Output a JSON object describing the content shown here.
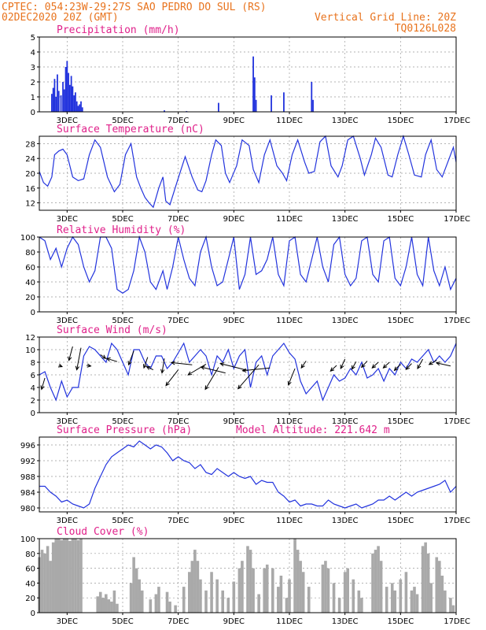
{
  "header": {
    "line1_left": "CPTEC:  054:23W-29:27S  SAO PEDRO DO SUL (RS)",
    "line2_left": "02DEC2020 20Z (GMT)",
    "line2_right": "Vertical Grid Line: 20Z",
    "line3_right": "TQ0126L028"
  },
  "colors": {
    "header": "#e8731d",
    "title": "#e0208a",
    "line": "#2233dd",
    "cloud": "#a9a9a9"
  },
  "x_axis": {
    "ticks": [
      {
        "day": 3,
        "label": "3DEC"
      },
      {
        "day": 5,
        "label": "5DEC"
      },
      {
        "day": 7,
        "label": "7DEC"
      },
      {
        "day": 9,
        "label": "9DEC"
      },
      {
        "day": 11,
        "label": "11DEC"
      },
      {
        "day": 13,
        "label": "13DEC"
      },
      {
        "day": 15,
        "label": "15DEC"
      },
      {
        "day": 17,
        "label": "17DEC"
      }
    ],
    "start_day": 2.0,
    "end_day": 17.0
  },
  "chart_data": [
    {
      "type": "bar",
      "title": "Precipitation (mm/h)",
      "ylim": [
        0,
        5
      ],
      "yticks": [
        0,
        1,
        2,
        3,
        4,
        5
      ],
      "bars": [
        [
          2.45,
          1.2
        ],
        [
          2.5,
          1.6
        ],
        [
          2.55,
          2.2
        ],
        [
          2.6,
          1.0
        ],
        [
          2.65,
          2.5
        ],
        [
          2.7,
          1.4
        ],
        [
          2.78,
          1.1
        ],
        [
          2.85,
          2.0
        ],
        [
          2.9,
          1.5
        ],
        [
          2.95,
          3.0
        ],
        [
          3.0,
          3.4
        ],
        [
          3.05,
          2.6
        ],
        [
          3.1,
          1.8
        ],
        [
          3.15,
          2.4
        ],
        [
          3.2,
          1.7
        ],
        [
          3.25,
          1.1
        ],
        [
          3.3,
          1.3
        ],
        [
          3.35,
          0.7
        ],
        [
          3.4,
          0.4
        ],
        [
          3.45,
          0.5
        ],
        [
          3.5,
          0.7
        ],
        [
          3.55,
          0.3
        ],
        [
          6.5,
          0.1
        ],
        [
          7.3,
          0.05
        ],
        [
          8.45,
          0.6
        ],
        [
          9.7,
          3.7
        ],
        [
          9.75,
          2.3
        ],
        [
          9.8,
          0.8
        ],
        [
          10.35,
          1.1
        ],
        [
          10.8,
          1.3
        ],
        [
          11.8,
          2.0
        ],
        [
          11.85,
          0.8
        ]
      ],
      "grid": true
    },
    {
      "type": "line",
      "title": "Surface Temperature (nC)",
      "ylim": [
        10,
        30
      ],
      "yticks": [
        12,
        16,
        20,
        24,
        28
      ],
      "x": [
        2.0,
        2.15,
        2.3,
        2.45,
        2.55,
        2.7,
        2.85,
        3.0,
        3.2,
        3.4,
        3.6,
        3.8,
        4.0,
        4.2,
        4.45,
        4.7,
        4.9,
        5.1,
        5.3,
        5.5,
        5.65,
        5.8,
        5.95,
        6.1,
        6.3,
        6.45,
        6.55,
        6.7,
        6.95,
        7.1,
        7.25,
        7.5,
        7.7,
        7.85,
        8.0,
        8.2,
        8.35,
        8.55,
        8.7,
        8.85,
        9.1,
        9.3,
        9.55,
        9.7,
        9.9,
        10.1,
        10.3,
        10.55,
        10.75,
        10.9,
        11.1,
        11.3,
        11.55,
        11.7,
        11.9,
        12.1,
        12.3,
        12.5,
        12.75,
        12.9,
        13.1,
        13.3,
        13.55,
        13.7,
        13.95,
        14.1,
        14.3,
        14.55,
        14.7,
        14.9,
        15.1,
        15.3,
        15.5,
        15.75,
        15.9,
        16.1,
        16.3,
        16.5,
        16.75,
        16.9,
        17.0
      ],
      "y": [
        20.5,
        17.5,
        16.5,
        19.0,
        25.0,
        26.0,
        26.5,
        25.0,
        19.0,
        18.0,
        18.5,
        25.0,
        29.0,
        27.0,
        19.0,
        15.0,
        17.0,
        25.0,
        28.0,
        19.0,
        16.0,
        13.5,
        12.0,
        10.8,
        16.0,
        19.0,
        12.5,
        11.5,
        17.5,
        21.0,
        24.5,
        19.0,
        15.5,
        15.0,
        18.0,
        25.0,
        29.0,
        27.5,
        20.0,
        17.5,
        22.0,
        29.0,
        27.5,
        21.0,
        17.5,
        25.0,
        29.0,
        22.0,
        20.0,
        18.0,
        25.0,
        29.0,
        23.0,
        20.0,
        20.5,
        28.5,
        30.0,
        22.0,
        19.0,
        22.0,
        29.0,
        30.0,
        24.0,
        19.5,
        25.0,
        29.5,
        27.0,
        19.5,
        19.0,
        25.0,
        30.0,
        25.0,
        19.5,
        19.0,
        25.0,
        29.0,
        21.0,
        19.0,
        24.0,
        27.0,
        23.0
      ],
      "grid": true
    },
    {
      "type": "line",
      "title": "Relative Humidity (%)",
      "ylim": [
        0,
        100
      ],
      "yticks": [
        0,
        20,
        40,
        60,
        80,
        100
      ],
      "x": [
        2.0,
        2.2,
        2.4,
        2.6,
        2.8,
        3.0,
        3.2,
        3.4,
        3.6,
        3.8,
        4.0,
        4.2,
        4.4,
        4.6,
        4.8,
        5.0,
        5.2,
        5.4,
        5.6,
        5.8,
        6.0,
        6.2,
        6.45,
        6.6,
        6.8,
        7.0,
        7.2,
        7.4,
        7.6,
        7.8,
        8.0,
        8.2,
        8.4,
        8.6,
        8.8,
        9.0,
        9.2,
        9.4,
        9.6,
        9.8,
        10.0,
        10.2,
        10.4,
        10.6,
        10.8,
        11.0,
        11.2,
        11.4,
        11.6,
        11.8,
        12.0,
        12.2,
        12.4,
        12.6,
        12.8,
        13.0,
        13.2,
        13.4,
        13.6,
        13.8,
        14.0,
        14.2,
        14.4,
        14.6,
        14.8,
        15.0,
        15.2,
        15.4,
        15.6,
        15.8,
        16.0,
        16.2,
        16.4,
        16.6,
        16.8,
        17.0
      ],
      "y": [
        100,
        95,
        70,
        85,
        60,
        85,
        100,
        90,
        60,
        40,
        55,
        100,
        100,
        85,
        30,
        25,
        30,
        55,
        100,
        80,
        40,
        30,
        55,
        30,
        60,
        100,
        70,
        45,
        35,
        80,
        100,
        60,
        35,
        40,
        70,
        100,
        30,
        50,
        100,
        50,
        55,
        70,
        100,
        50,
        35,
        95,
        100,
        50,
        40,
        70,
        100,
        60,
        40,
        90,
        100,
        50,
        35,
        45,
        95,
        100,
        50,
        40,
        95,
        100,
        45,
        35,
        60,
        100,
        50,
        35,
        100,
        55,
        35,
        60,
        30,
        45
      ],
      "grid": true
    },
    {
      "type": "line",
      "title": "Surface Wind (m/s)",
      "ylim": [
        0,
        12
      ],
      "yticks": [
        0,
        2,
        4,
        6,
        8,
        10,
        12
      ],
      "x": [
        2.0,
        2.2,
        2.4,
        2.6,
        2.8,
        3.0,
        3.2,
        3.4,
        3.6,
        3.8,
        4.0,
        4.2,
        4.4,
        4.6,
        4.8,
        5.0,
        5.2,
        5.4,
        5.6,
        5.8,
        6.0,
        6.2,
        6.4,
        6.6,
        6.8,
        7.0,
        7.2,
        7.4,
        7.6,
        7.8,
        8.0,
        8.2,
        8.4,
        8.6,
        8.8,
        9.0,
        9.2,
        9.4,
        9.6,
        9.8,
        10.0,
        10.2,
        10.4,
        10.6,
        10.8,
        11.0,
        11.2,
        11.4,
        11.6,
        11.8,
        12.0,
        12.2,
        12.4,
        12.6,
        12.8,
        13.0,
        13.2,
        13.4,
        13.6,
        13.8,
        14.0,
        14.2,
        14.4,
        14.6,
        14.8,
        15.0,
        15.2,
        15.4,
        15.6,
        15.8,
        16.0,
        16.2,
        16.4,
        16.6,
        16.8,
        17.0
      ],
      "y": [
        6,
        6.5,
        4,
        2,
        5,
        2.5,
        4,
        4,
        9,
        10.5,
        10,
        9,
        8,
        11,
        10,
        8,
        6,
        10,
        10,
        8,
        7,
        9,
        9,
        7,
        8,
        9.5,
        11,
        8,
        9,
        10,
        9,
        6,
        9,
        8,
        10,
        7,
        9,
        10,
        4,
        8,
        9,
        6,
        9,
        10,
        11,
        9.5,
        8.5,
        5,
        3,
        4,
        5,
        2,
        4,
        6,
        5,
        5.5,
        7,
        6,
        8,
        5.5,
        6,
        7,
        5,
        7,
        6,
        8,
        7,
        8.5,
        8,
        9,
        10,
        8,
        9,
        8,
        9,
        11
      ],
      "arrows": [
        [
          2.2,
          5.5,
          -0.35,
          -1.8
        ],
        [
          2.7,
          7.5,
          0.35,
          -0.2
        ],
        [
          3.2,
          10.5,
          -0.4,
          -2.2
        ],
        [
          3.5,
          10.3,
          -0.45,
          -3.5
        ],
        [
          3.7,
          7.5,
          0.45,
          -0.1
        ],
        [
          4.2,
          9.2,
          0.55,
          -0.6
        ],
        [
          4.8,
          8.1,
          -1.1,
          0.5
        ],
        [
          5.4,
          9.8,
          -0.55,
          -2.2
        ],
        [
          5.9,
          8.8,
          -0.4,
          -1.7
        ],
        [
          6.1,
          6.8,
          -0.7,
          0.5
        ],
        [
          6.5,
          8.6,
          -0.25,
          -2.3
        ],
        [
          7.0,
          6.8,
          -1.3,
          -2.5
        ],
        [
          7.5,
          7.6,
          -2.2,
          0.35
        ],
        [
          8.0,
          7.7,
          -1.9,
          -1.7
        ],
        [
          8.45,
          7.2,
          -1.4,
          -3.5
        ],
        [
          8.7,
          6.3,
          -2.6,
          0.95
        ],
        [
          9.5,
          6.7,
          -2.9,
          1.1
        ],
        [
          9.9,
          7.6,
          -2.2,
          -3.8
        ],
        [
          10.3,
          7.1,
          -2.9,
          -0.45
        ],
        [
          11.2,
          7.0,
          -0.7,
          -2.6
        ],
        [
          11.6,
          8.2,
          -0.5,
          -1.1
        ],
        [
          12.7,
          7.5,
          -0.65,
          -0.9
        ],
        [
          13.0,
          8.5,
          -0.45,
          -1.5
        ],
        [
          13.4,
          8.1,
          -0.45,
          -1.2
        ],
        [
          13.8,
          8.2,
          -0.6,
          -1.0
        ],
        [
          14.2,
          8.0,
          -0.65,
          -0.9
        ],
        [
          14.6,
          8.0,
          -0.65,
          -0.9
        ],
        [
          15.0,
          7.7,
          -0.65,
          -1.0
        ],
        [
          15.4,
          7.8,
          -0.6,
          -0.95
        ],
        [
          15.8,
          8.5,
          -0.55,
          -1.5
        ],
        [
          16.3,
          8.3,
          -0.8,
          -0.65
        ],
        [
          16.8,
          7.4,
          -1.5,
          0.5
        ]
      ],
      "grid": true
    },
    {
      "type": "line",
      "title": "Surface Pressure (hPa)",
      "subtitle": "Model Altitude: 221.642 m",
      "ylim": [
        979,
        998
      ],
      "yticks": [
        980,
        984,
        988,
        992,
        996
      ],
      "x": [
        2.0,
        2.2,
        2.4,
        2.6,
        2.8,
        3.0,
        3.2,
        3.4,
        3.6,
        3.8,
        4.0,
        4.2,
        4.4,
        4.6,
        4.8,
        5.0,
        5.2,
        5.4,
        5.6,
        5.8,
        6.0,
        6.2,
        6.4,
        6.6,
        6.8,
        7.0,
        7.2,
        7.4,
        7.6,
        7.8,
        8.0,
        8.2,
        8.4,
        8.6,
        8.8,
        9.0,
        9.2,
        9.4,
        9.6,
        9.8,
        10.0,
        10.2,
        10.4,
        10.6,
        10.8,
        11.0,
        11.2,
        11.4,
        11.6,
        11.8,
        12.0,
        12.2,
        12.4,
        12.6,
        12.8,
        13.0,
        13.2,
        13.4,
        13.6,
        13.8,
        14.0,
        14.2,
        14.4,
        14.6,
        14.8,
        15.0,
        15.2,
        15.4,
        15.6,
        15.8,
        16.0,
        16.2,
        16.4,
        16.6,
        16.8,
        17.0
      ],
      "y": [
        985.5,
        985.5,
        984,
        983,
        981.5,
        982,
        981,
        980.5,
        980,
        981,
        985,
        988,
        991,
        993,
        994,
        995,
        996,
        995.5,
        997,
        996,
        995,
        996,
        995.5,
        994,
        992,
        993,
        992,
        991.5,
        990,
        991,
        989,
        988.5,
        990,
        989,
        988,
        989,
        988,
        987.5,
        988,
        986,
        987,
        986.5,
        986.5,
        984,
        983,
        981.5,
        982,
        980.5,
        981,
        981,
        980.5,
        980.5,
        982,
        981,
        980.5,
        980,
        980.5,
        981,
        980,
        980.5,
        981,
        982,
        982,
        983,
        982,
        983,
        984,
        983,
        984,
        984.5,
        985,
        985.5,
        986,
        987,
        984,
        985.5
      ],
      "grid": true
    },
    {
      "type": "bar",
      "title": "Cloud Cover (%)",
      "ylim": [
        0,
        100
      ],
      "yticks": [
        0,
        20,
        40,
        60,
        80,
        100
      ],
      "bars": [
        [
          2.0,
          75
        ],
        [
          2.1,
          85
        ],
        [
          2.2,
          80
        ],
        [
          2.3,
          90
        ],
        [
          2.4,
          70
        ],
        [
          2.5,
          95
        ],
        [
          2.6,
          100
        ],
        [
          2.7,
          100
        ],
        [
          2.8,
          98
        ],
        [
          2.9,
          100
        ],
        [
          3.0,
          100
        ],
        [
          3.1,
          97
        ],
        [
          3.2,
          100
        ],
        [
          3.3,
          100
        ],
        [
          3.4,
          98
        ],
        [
          3.5,
          100
        ],
        [
          4.1,
          22
        ],
        [
          4.2,
          28
        ],
        [
          4.3,
          20
        ],
        [
          4.4,
          25
        ],
        [
          4.5,
          18
        ],
        [
          4.6,
          15
        ],
        [
          4.7,
          30
        ],
        [
          4.8,
          12
        ],
        [
          5.3,
          40
        ],
        [
          5.4,
          75
        ],
        [
          5.5,
          60
        ],
        [
          5.6,
          45
        ],
        [
          5.7,
          30
        ],
        [
          6.0,
          18
        ],
        [
          6.2,
          25
        ],
        [
          6.3,
          35
        ],
        [
          6.6,
          28
        ],
        [
          6.7,
          15
        ],
        [
          6.9,
          10
        ],
        [
          7.2,
          35
        ],
        [
          7.4,
          55
        ],
        [
          7.5,
          70
        ],
        [
          7.6,
          85
        ],
        [
          7.7,
          70
        ],
        [
          7.8,
          45
        ],
        [
          8.0,
          30
        ],
        [
          8.2,
          55
        ],
        [
          8.4,
          45
        ],
        [
          8.6,
          30
        ],
        [
          8.8,
          20
        ],
        [
          9.0,
          42
        ],
        [
          9.2,
          60
        ],
        [
          9.3,
          70
        ],
        [
          9.5,
          90
        ],
        [
          9.6,
          85
        ],
        [
          9.7,
          60
        ],
        [
          9.9,
          25
        ],
        [
          10.1,
          60
        ],
        [
          10.2,
          65
        ],
        [
          10.4,
          60
        ],
        [
          10.6,
          35
        ],
        [
          10.7,
          50
        ],
        [
          10.9,
          20
        ],
        [
          11.0,
          45
        ],
        [
          11.2,
          100
        ],
        [
          11.3,
          85
        ],
        [
          11.4,
          70
        ],
        [
          11.5,
          55
        ],
        [
          11.7,
          35
        ],
        [
          12.2,
          65
        ],
        [
          12.3,
          70
        ],
        [
          12.4,
          60
        ],
        [
          12.6,
          40
        ],
        [
          12.8,
          20
        ],
        [
          13.0,
          55
        ],
        [
          13.1,
          60
        ],
        [
          13.3,
          45
        ],
        [
          13.5,
          30
        ],
        [
          13.6,
          20
        ],
        [
          14.0,
          80
        ],
        [
          14.1,
          85
        ],
        [
          14.2,
          90
        ],
        [
          14.3,
          70
        ],
        [
          14.5,
          35
        ],
        [
          14.7,
          40
        ],
        [
          14.8,
          30
        ],
        [
          15.0,
          45
        ],
        [
          15.2,
          55
        ],
        [
          15.4,
          30
        ],
        [
          15.5,
          35
        ],
        [
          15.6,
          25
        ],
        [
          15.8,
          90
        ],
        [
          15.9,
          95
        ],
        [
          16.0,
          80
        ],
        [
          16.1,
          40
        ],
        [
          16.3,
          75
        ],
        [
          16.4,
          70
        ],
        [
          16.5,
          50
        ],
        [
          16.6,
          30
        ],
        [
          16.8,
          20
        ],
        [
          16.9,
          10
        ]
      ],
      "grid": true
    }
  ]
}
